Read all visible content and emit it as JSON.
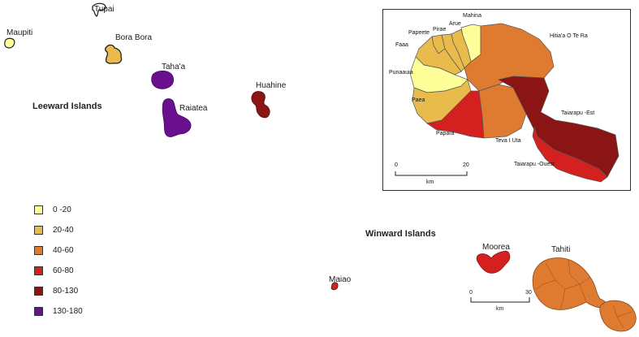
{
  "regions": {
    "leeward": "Leeward Islands",
    "windward": "Winward Islands"
  },
  "islands": {
    "tupai": "Tupai",
    "maupiti": "Maupiti",
    "bora_bora": "Bora Bora",
    "tahaa": "Taha'a",
    "raiatea": "Raiatea",
    "huahine": "Huahine",
    "maiao": "Maiao",
    "moorea": "Moorea",
    "tahiti": "Tahiti"
  },
  "inset": {
    "communes": {
      "mahina": "Mahina",
      "arue": "Arue",
      "papeete": "Papeete",
      "pirae": "Pirae",
      "faaa": "Faaa",
      "hitiaa": "Hitia'a O Te Ra",
      "punaauia": "Punaauia",
      "paea": "Paea",
      "papara": "Papara",
      "teva": "Teva I Uta",
      "taiarapu_est": "Taiarapu -Est",
      "taiarapu_ouest": "Taiarapu -Ouest"
    },
    "scale": {
      "start": "0",
      "end": "20",
      "unit": "km"
    }
  },
  "main_scale": {
    "start": "0",
    "end": "30",
    "unit": "km"
  },
  "legend": [
    {
      "label": "0 -20",
      "color": "#ffff99"
    },
    {
      "label": "20-40",
      "color": "#e8bb4c"
    },
    {
      "label": "40-60",
      "color": "#de7b31"
    },
    {
      "label": "60-80",
      "color": "#d52020"
    },
    {
      "label": "80-130",
      "color": "#8b1414"
    },
    {
      "label": "130-180",
      "color": "#6a0f8e"
    }
  ],
  "colors": {
    "c0_20": "#ffff99",
    "c20_40": "#e8bb4c",
    "c40_60": "#de7b31",
    "c60_80": "#d52020",
    "c80_130": "#8b1414",
    "c130_180": "#6a0f8e"
  }
}
